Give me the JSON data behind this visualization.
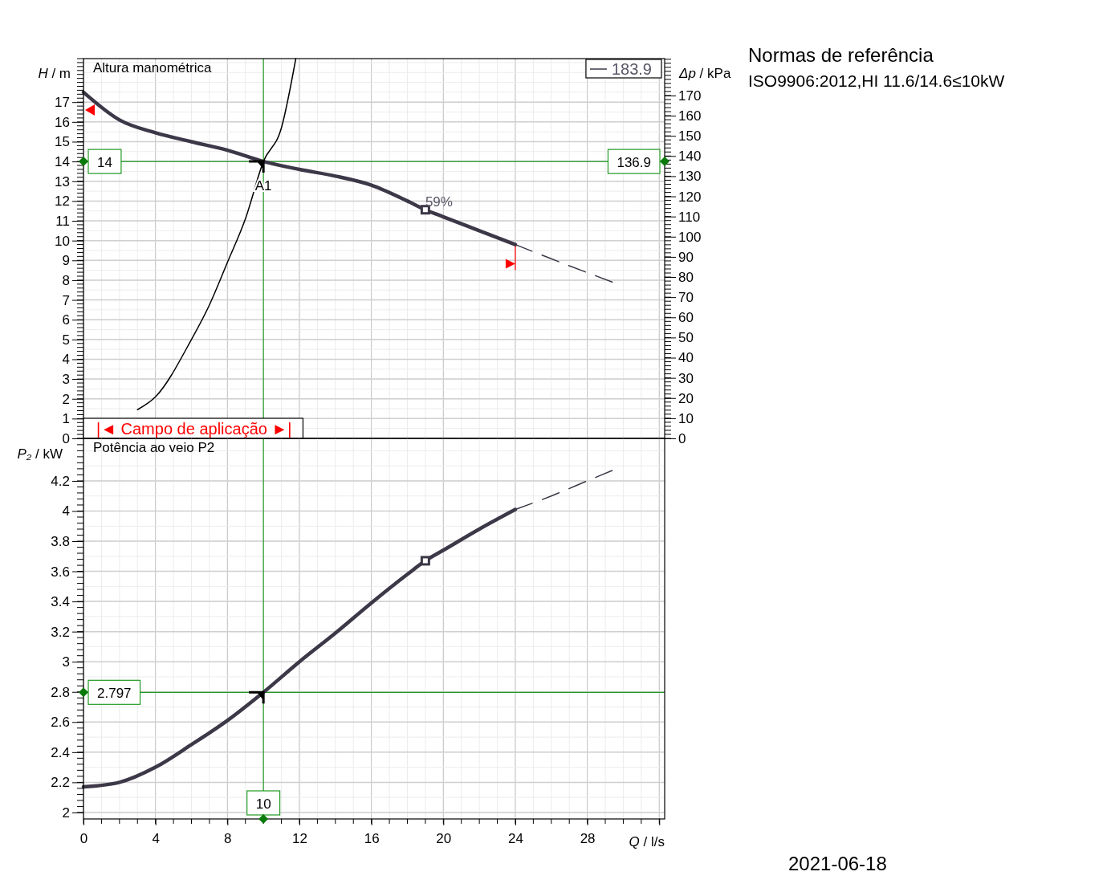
{
  "chart_data": [
    {
      "type": "line",
      "title": "Altura manométrica",
      "ylabel": "H / m",
      "y2label": "Δp / kPa",
      "xlim": [
        0,
        32.3
      ],
      "xticks": [
        0,
        4,
        8,
        12,
        16,
        20,
        24,
        28,
        {
          "value": 32,
          "label": null
        }
      ],
      "ylim": [
        0,
        19.2
      ],
      "yticks": [
        0,
        1,
        2,
        3,
        4,
        5,
        6,
        7,
        8,
        9,
        10,
        11,
        12,
        13,
        14,
        15,
        16,
        17
      ],
      "y2lim": [
        0,
        188.3
      ],
      "y2ticks": [
        0,
        10,
        20,
        30,
        40,
        50,
        60,
        70,
        80,
        90,
        100,
        110,
        120,
        130,
        140,
        150,
        160,
        170
      ],
      "tick_labels": "y",
      "grid": true,
      "legend": "top right",
      "series": [
        {
          "name": "183.9",
          "color": "#3d3848",
          "x": [
            0,
            2,
            4,
            6,
            8,
            10,
            12,
            14,
            16,
            18,
            19,
            20,
            22,
            24
          ],
          "values": [
            17.5,
            16.1,
            15.45,
            15.0,
            14.57,
            14.0,
            13.6,
            13.26,
            12.8,
            12.0,
            11.56,
            11.2,
            10.5,
            9.8
          ]
        },
        {
          "color": "#3d3848",
          "line_style": "dashed",
          "x": [
            24,
            26,
            28,
            29.4
          ],
          "values": [
            9.8,
            9.08,
            8.38,
            7.9
          ]
        },
        {
          "color": "#000000",
          "x": [
            3,
            4,
            6,
            7,
            8,
            9,
            10,
            11,
            11.8
          ],
          "values": [
            1.45,
            2.1,
            5.0,
            6.75,
            8.9,
            11.1,
            14.0,
            15.7,
            19.2
          ]
        },
        {
          "type": "scatter",
          "marker": "square",
          "color": "#3d3848",
          "x": [
            19
          ],
          "values": [
            11.56
          ]
        }
      ],
      "ref_lines": [
        {
          "axis": "x",
          "value": 10,
          "color": "#229922"
        },
        {
          "axis": "y",
          "value": 14,
          "label": "14",
          "color": "#229922"
        }
      ],
      "annotations": [
        {
          "text": "59%",
          "x": 19,
          "y": 11.56
        },
        {
          "text": "A1",
          "x": 10,
          "y": 14
        },
        "|◄ Campo de aplicação ►|",
        "Normas de referência",
        "ISO9906:2012,HI 11.6/14.6≤10kW",
        "136.9"
      ]
    },
    {
      "type": "line",
      "title": "Potência ao veio P2",
      "xlabel": "Q / l/s",
      "ylabel": "P₂ / kW",
      "xlim": [
        0,
        32.3
      ],
      "xticks": [
        0,
        4,
        8,
        12,
        16,
        20,
        24,
        28,
        {
          "value": 32,
          "label": null
        }
      ],
      "ylim": [
        1.957,
        4.482
      ],
      "yticks": [
        2,
        2.2,
        2.4,
        2.6,
        2.8,
        3,
        3.2,
        3.4,
        3.6,
        3.8,
        4,
        4.2
      ],
      "grid": true,
      "series": [
        {
          "color": "#3d3848",
          "x": [
            0,
            2,
            4,
            6,
            8,
            10,
            12,
            14,
            16,
            18,
            19,
            20,
            22,
            24
          ],
          "values": [
            2.17,
            2.2,
            2.3,
            2.45,
            2.61,
            2.797,
            3.0,
            3.19,
            3.39,
            3.58,
            3.67,
            3.74,
            3.88,
            4.01
          ]
        },
        {
          "color": "#3d3848",
          "line_style": "dashed",
          "x": [
            24,
            26,
            28,
            29.4
          ],
          "values": [
            4.01,
            4.1,
            4.2,
            4.27
          ]
        },
        {
          "type": "scatter",
          "marker": "square",
          "color": "#3d3848",
          "x": [
            19
          ],
          "values": [
            3.67
          ]
        }
      ],
      "ref_lines": [
        {
          "axis": "x",
          "value": 10,
          "label": "10",
          "color": "#229922"
        },
        {
          "axis": "y",
          "value": 2.797,
          "label": "2.797",
          "color": "#229922"
        }
      ],
      "annotations": [
        "2021-06-18"
      ]
    }
  ]
}
